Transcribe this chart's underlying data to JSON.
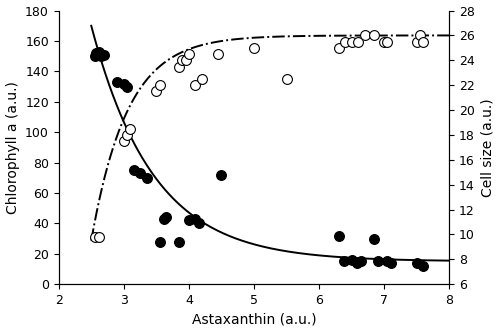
{
  "xlabel": "Astaxanthin (a.u.)",
  "ylabel_left": "Chlorophyll a (a.u.)",
  "ylabel_right": "Cell size (a.u.)",
  "xlim": [
    2,
    8
  ],
  "ylim_left": [
    0,
    180
  ],
  "ylim_right": [
    6,
    28
  ],
  "xticks": [
    2,
    3,
    4,
    5,
    6,
    7,
    8
  ],
  "yticks_left": [
    0,
    20,
    40,
    60,
    80,
    100,
    120,
    140,
    160,
    180
  ],
  "yticks_right": [
    6,
    8,
    10,
    12,
    14,
    16,
    18,
    20,
    22,
    24,
    26,
    28
  ],
  "filled_dots_x": [
    2.55,
    2.58,
    2.62,
    2.65,
    2.7,
    2.9,
    3.0,
    3.05,
    3.15,
    3.25,
    3.35,
    3.55,
    3.62,
    3.65,
    3.85,
    4.0,
    4.1,
    4.15,
    4.5,
    6.3,
    6.38,
    6.5,
    6.58,
    6.65,
    6.85,
    6.9,
    7.05,
    7.1,
    7.5,
    7.6
  ],
  "filled_dots_y": [
    150,
    152,
    153,
    150,
    151,
    133,
    132,
    130,
    75,
    73,
    70,
    28,
    43,
    44,
    28,
    42,
    43,
    40,
    72,
    32,
    15,
    16,
    14,
    15,
    30,
    15,
    15,
    14,
    14,
    12
  ],
  "open_dots_x": [
    2.55,
    2.62,
    3.0,
    3.05,
    3.1,
    3.5,
    3.55,
    3.85,
    3.9,
    3.95,
    4.0,
    4.1,
    4.2,
    4.45,
    5.0,
    5.5,
    6.3,
    6.4,
    6.5,
    6.6,
    6.7,
    6.85,
    7.0,
    7.05,
    7.5,
    7.55,
    7.6
  ],
  "open_dots_y_cellsize": [
    9.8,
    9.8,
    17.5,
    18.0,
    18.5,
    21.5,
    22.0,
    23.5,
    24.0,
    24.0,
    24.5,
    22.0,
    22.5,
    24.5,
    25.0,
    22.5,
    25.0,
    25.5,
    25.5,
    25.5,
    26.0,
    26.0,
    25.5,
    25.5,
    25.5,
    26.0,
    25.5
  ],
  "decay_a": 155,
  "decay_b": 1.05,
  "decay_c": 15.0,
  "decay_x0": 2.5,
  "rise_ymax": 26.0,
  "rise_c": 9.5,
  "rise_k": 1.8,
  "rise_x0": 2.5,
  "line_color": "#000000",
  "dot_fill_color": "#000000",
  "dot_open_color": "#ffffff",
  "dot_edge_color": "#000000",
  "dot_size": 50,
  "dot_linewidth": 0.8,
  "line_width": 1.4,
  "background_color": "#ffffff",
  "tick_labelsize": 9,
  "label_fontsize": 10
}
